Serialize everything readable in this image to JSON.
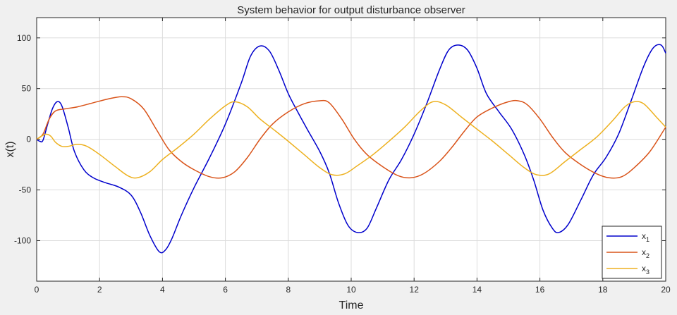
{
  "chart_data": {
    "type": "line",
    "title": "System behavior for output disturbance observer",
    "xlabel": "Time",
    "ylabel": "x(t)",
    "xlim": [
      0,
      20
    ],
    "ylim": [
      -140,
      120
    ],
    "xticks": [
      0,
      2,
      4,
      6,
      8,
      10,
      12,
      14,
      16,
      18,
      20
    ],
    "yticks": [
      -100,
      -50,
      0,
      50,
      100
    ],
    "grid": true,
    "legend_position": "bottom-right",
    "series": [
      {
        "name": "x",
        "subscript": "1",
        "color": "#0000cc",
        "points": [
          [
            0,
            0
          ],
          [
            0.1,
            -2
          ],
          [
            0.2,
            -1
          ],
          [
            0.35,
            15
          ],
          [
            0.5,
            30
          ],
          [
            0.65,
            37
          ],
          [
            0.8,
            33
          ],
          [
            1.0,
            12
          ],
          [
            1.2,
            -12
          ],
          [
            1.5,
            -30
          ],
          [
            1.8,
            -38
          ],
          [
            2.2,
            -43
          ],
          [
            2.6,
            -47
          ],
          [
            3.0,
            -55
          ],
          [
            3.3,
            -72
          ],
          [
            3.6,
            -95
          ],
          [
            3.9,
            -111
          ],
          [
            4.1,
            -109
          ],
          [
            4.3,
            -98
          ],
          [
            4.6,
            -75
          ],
          [
            5.0,
            -48
          ],
          [
            5.5,
            -18
          ],
          [
            6.0,
            15
          ],
          [
            6.5,
            55
          ],
          [
            6.8,
            82
          ],
          [
            7.1,
            92
          ],
          [
            7.4,
            87
          ],
          [
            7.7,
            68
          ],
          [
            8.0,
            45
          ],
          [
            8.3,
            27
          ],
          [
            8.6,
            10
          ],
          [
            9.0,
            -12
          ],
          [
            9.3,
            -33
          ],
          [
            9.6,
            -63
          ],
          [
            9.9,
            -85
          ],
          [
            10.2,
            -92
          ],
          [
            10.5,
            -88
          ],
          [
            10.8,
            -68
          ],
          [
            11.2,
            -40
          ],
          [
            11.6,
            -20
          ],
          [
            12.0,
            5
          ],
          [
            12.4,
            35
          ],
          [
            12.8,
            68
          ],
          [
            13.1,
            88
          ],
          [
            13.4,
            93
          ],
          [
            13.7,
            88
          ],
          [
            14.0,
            70
          ],
          [
            14.3,
            45
          ],
          [
            14.7,
            27
          ],
          [
            15.1,
            10
          ],
          [
            15.5,
            -15
          ],
          [
            15.8,
            -40
          ],
          [
            16.1,
            -70
          ],
          [
            16.4,
            -88
          ],
          [
            16.6,
            -92
          ],
          [
            16.9,
            -84
          ],
          [
            17.3,
            -60
          ],
          [
            17.7,
            -35
          ],
          [
            18.1,
            -18
          ],
          [
            18.5,
            5
          ],
          [
            18.9,
            38
          ],
          [
            19.3,
            72
          ],
          [
            19.6,
            90
          ],
          [
            19.85,
            93
          ],
          [
            20.0,
            85
          ]
        ]
      },
      {
        "name": "x",
        "subscript": "2",
        "color": "#d95319",
        "points": [
          [
            0,
            0
          ],
          [
            0.2,
            5
          ],
          [
            0.4,
            20
          ],
          [
            0.6,
            28
          ],
          [
            0.9,
            30
          ],
          [
            1.3,
            32
          ],
          [
            1.8,
            36
          ],
          [
            2.3,
            40
          ],
          [
            2.7,
            42
          ],
          [
            3.0,
            40
          ],
          [
            3.4,
            30
          ],
          [
            3.8,
            10
          ],
          [
            4.2,
            -10
          ],
          [
            4.6,
            -22
          ],
          [
            5.0,
            -30
          ],
          [
            5.5,
            -37
          ],
          [
            5.9,
            -38
          ],
          [
            6.3,
            -32
          ],
          [
            6.7,
            -18
          ],
          [
            7.1,
            0
          ],
          [
            7.5,
            15
          ],
          [
            8.0,
            27
          ],
          [
            8.5,
            35
          ],
          [
            9.0,
            38
          ],
          [
            9.3,
            36
          ],
          [
            9.7,
            20
          ],
          [
            10.1,
            0
          ],
          [
            10.5,
            -15
          ],
          [
            11.0,
            -27
          ],
          [
            11.5,
            -36
          ],
          [
            11.9,
            -38
          ],
          [
            12.3,
            -34
          ],
          [
            12.8,
            -22
          ],
          [
            13.2,
            -8
          ],
          [
            13.6,
            8
          ],
          [
            14.0,
            22
          ],
          [
            14.5,
            31
          ],
          [
            15.0,
            37
          ],
          [
            15.3,
            38
          ],
          [
            15.6,
            34
          ],
          [
            16.0,
            20
          ],
          [
            16.4,
            2
          ],
          [
            16.8,
            -13
          ],
          [
            17.3,
            -25
          ],
          [
            17.8,
            -34
          ],
          [
            18.2,
            -38
          ],
          [
            18.6,
            -37
          ],
          [
            19.0,
            -28
          ],
          [
            19.5,
            -12
          ],
          [
            20.0,
            12
          ]
        ]
      },
      {
        "name": "x",
        "subscript": "3",
        "color": "#edb120",
        "points": [
          [
            0,
            0
          ],
          [
            0.15,
            3
          ],
          [
            0.3,
            5
          ],
          [
            0.45,
            3
          ],
          [
            0.6,
            -3
          ],
          [
            0.8,
            -7
          ],
          [
            1.0,
            -7
          ],
          [
            1.3,
            -5
          ],
          [
            1.6,
            -7
          ],
          [
            2.0,
            -15
          ],
          [
            2.5,
            -27
          ],
          [
            2.9,
            -36
          ],
          [
            3.2,
            -38
          ],
          [
            3.6,
            -32
          ],
          [
            4.0,
            -20
          ],
          [
            4.5,
            -8
          ],
          [
            5.0,
            5
          ],
          [
            5.5,
            20
          ],
          [
            6.0,
            33
          ],
          [
            6.3,
            37
          ],
          [
            6.7,
            32
          ],
          [
            7.1,
            20
          ],
          [
            7.6,
            8
          ],
          [
            8.0,
            -2
          ],
          [
            8.5,
            -15
          ],
          [
            9.0,
            -28
          ],
          [
            9.4,
            -35
          ],
          [
            9.8,
            -34
          ],
          [
            10.2,
            -26
          ],
          [
            10.7,
            -15
          ],
          [
            11.2,
            -2
          ],
          [
            11.7,
            12
          ],
          [
            12.2,
            28
          ],
          [
            12.6,
            37
          ],
          [
            13.0,
            34
          ],
          [
            13.5,
            22
          ],
          [
            14.0,
            10
          ],
          [
            14.5,
            -2
          ],
          [
            15.0,
            -15
          ],
          [
            15.5,
            -28
          ],
          [
            15.9,
            -35
          ],
          [
            16.3,
            -34
          ],
          [
            16.8,
            -22
          ],
          [
            17.3,
            -10
          ],
          [
            17.8,
            2
          ],
          [
            18.3,
            18
          ],
          [
            18.7,
            32
          ],
          [
            19.0,
            37
          ],
          [
            19.3,
            35
          ],
          [
            19.7,
            22
          ],
          [
            20.0,
            12
          ]
        ]
      }
    ]
  }
}
